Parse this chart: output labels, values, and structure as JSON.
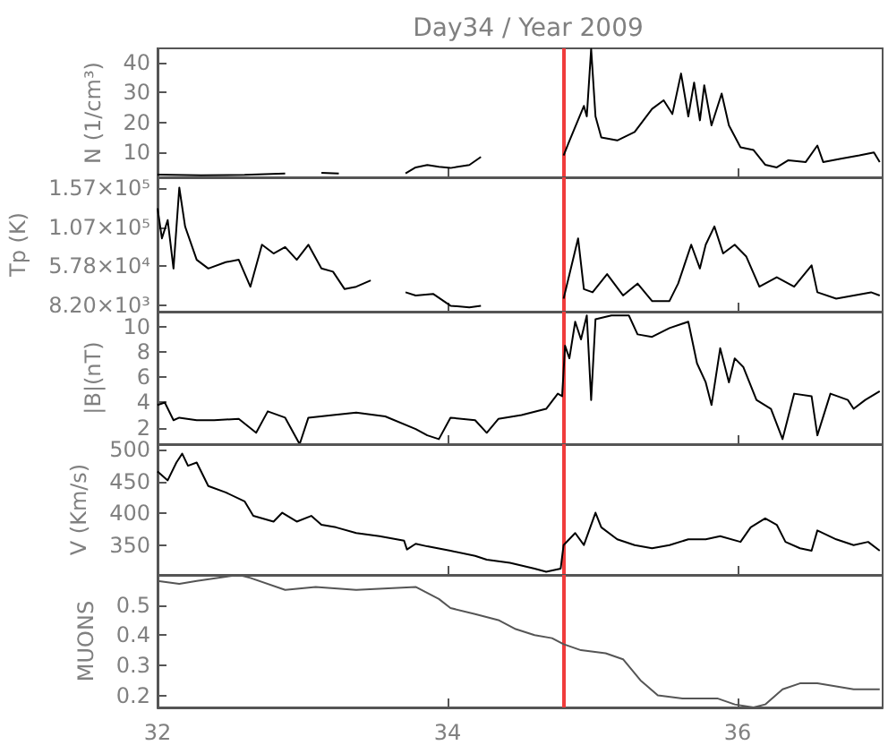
{
  "chart_data": [
    {
      "type": "line",
      "title": "Day34 / Year 2009",
      "ylabel": "N (1/cm³)",
      "color": "#000000",
      "tick_labels": "y",
      "xlim": [
        32,
        37
      ],
      "xticks": [
        32,
        34,
        36
      ],
      "ylim": [
        1.7,
        44.7
      ],
      "yticks": [
        10,
        20,
        30,
        40
      ],
      "x": [
        32.0,
        32.3,
        32.6,
        32.88,
        33.0,
        33.13,
        33.25,
        33.5,
        33.71,
        33.78,
        33.86,
        33.94,
        34.02,
        34.15,
        34.23,
        34.5,
        34.8,
        34.84,
        34.94,
        34.96,
        34.99,
        35.02,
        35.06,
        35.17,
        35.29,
        35.41,
        35.49,
        35.55,
        35.61,
        35.66,
        35.7,
        35.74,
        35.77,
        35.82,
        35.89,
        35.94,
        36.02,
        36.11,
        36.19,
        36.27,
        36.35,
        36.47,
        36.55,
        36.59,
        36.72,
        36.84,
        36.94,
        36.98
      ],
      "values": [
        2.6,
        2.4,
        2.5,
        3.0,
        null,
        3.2,
        3.0,
        null,
        3.0,
        5.0,
        5.8,
        5.2,
        4.8,
        5.8,
        8.5,
        null,
        9,
        13.8,
        25.5,
        22,
        44.5,
        22,
        15,
        14,
        16.8,
        24.5,
        27.4,
        22.8,
        36.3,
        22,
        33.3,
        20.7,
        32.4,
        19,
        29.6,
        19,
        11.7,
        10.8,
        5.9,
        5,
        7.4,
        6.8,
        12.3,
        6.8,
        8,
        9,
        10,
        6.8
      ],
      "ref_lines": [
        {
          "axis": "x",
          "value": 34.8,
          "color": "#f03c3c"
        }
      ]
    },
    {
      "type": "line",
      "ylabel": "Tp (K)",
      "color": "#000000",
      "tick_labels": "y",
      "xlim": [
        32,
        37
      ],
      "xticks": [
        32,
        34,
        36
      ],
      "ylim": [
        600,
        170000
      ],
      "yticks": [
        {
          "value": 8200,
          "label": "8.20×10³"
        },
        {
          "value": 57800,
          "label": "5.78×10⁴"
        },
        {
          "value": 107000,
          "label": "1.07×10⁵"
        },
        {
          "value": 157000,
          "label": "1.57×10⁵"
        }
      ],
      "x": [
        32.0,
        32.03,
        32.07,
        32.11,
        32.15,
        32.19,
        32.27,
        32.35,
        32.47,
        32.56,
        32.64,
        32.72,
        32.8,
        32.88,
        32.96,
        33.04,
        33.13,
        33.21,
        33.29,
        33.37,
        33.47,
        33.6,
        33.71,
        33.78,
        33.9,
        34.02,
        34.15,
        34.23,
        34.5,
        34.8,
        34.9,
        34.94,
        35.0,
        35.1,
        35.21,
        35.31,
        35.41,
        35.53,
        35.59,
        35.68,
        35.74,
        35.78,
        35.84,
        35.9,
        35.98,
        36.06,
        36.15,
        36.27,
        36.39,
        36.51,
        36.55,
        36.68,
        36.8,
        36.92,
        36.98
      ],
      "values": [
        131000,
        93000,
        116000,
        55000,
        157000,
        108000,
        66000,
        55000,
        63000,
        66000,
        32000,
        85000,
        74000,
        82000,
        66000,
        85000,
        55000,
        51000,
        29000,
        32000,
        40000,
        null,
        25000,
        21000,
        23000,
        8000,
        6000,
        8000,
        null,
        17000,
        93000,
        29000,
        25000,
        48000,
        21000,
        36000,
        14000,
        14000,
        36000,
        85000,
        55000,
        85000,
        108000,
        74000,
        85000,
        70000,
        32000,
        44000,
        32000,
        59000,
        25000,
        17000,
        21000,
        25000,
        21000
      ],
      "ref_lines": [
        {
          "axis": "x",
          "value": 34.8,
          "color": "#f03c3c"
        }
      ]
    },
    {
      "type": "line",
      "ylabel": "|B|(nT)",
      "color": "#000000",
      "tick_labels": "y",
      "xlim": [
        32,
        37
      ],
      "xticks": [
        32,
        34,
        36
      ],
      "ylim": [
        0.7,
        11.2
      ],
      "yticks": [
        2,
        4,
        6,
        8,
        10
      ],
      "x": [
        32.0,
        32.05,
        32.11,
        32.15,
        32.27,
        32.39,
        32.56,
        32.68,
        32.76,
        32.88,
        32.98,
        33.04,
        33.21,
        33.37,
        33.57,
        33.78,
        33.86,
        33.94,
        34.02,
        34.19,
        34.27,
        34.35,
        34.51,
        34.68,
        34.76,
        34.79,
        34.81,
        34.84,
        34.88,
        34.92,
        34.96,
        34.99,
        35.02,
        35.13,
        35.25,
        35.31,
        35.41,
        35.53,
        35.66,
        35.72,
        35.78,
        35.82,
        35.88,
        35.94,
        35.98,
        36.04,
        36.13,
        36.23,
        36.31,
        36.39,
        36.51,
        36.55,
        36.64,
        36.76,
        36.8,
        36.88,
        36.98
      ],
      "values": [
        3.8,
        4.0,
        2.6,
        2.8,
        2.6,
        2.6,
        2.7,
        1.6,
        3.3,
        2.8,
        0.7,
        2.8,
        3.0,
        3.2,
        2.9,
        1.9,
        1.4,
        1.1,
        2.8,
        2.6,
        1.6,
        2.7,
        3.0,
        3.5,
        4.7,
        4.5,
        8.5,
        7.5,
        10.4,
        9.0,
        10.9,
        4.2,
        10.6,
        10.9,
        10.9,
        9.4,
        9.2,
        9.9,
        10.4,
        7.1,
        5.6,
        3.8,
        8.3,
        5.6,
        7.5,
        6.8,
        4.2,
        3.5,
        1.1,
        4.7,
        4.5,
        1.4,
        4.7,
        4.2,
        3.5,
        4.2,
        4.9
      ],
      "ref_lines": [
        {
          "axis": "x",
          "value": 34.8,
          "color": "#f03c3c"
        }
      ]
    },
    {
      "type": "line",
      "ylabel": "V (Km/s)",
      "color": "#000000",
      "tick_labels": "y",
      "xlim": [
        32,
        37
      ],
      "xticks": [
        32,
        34,
        36
      ],
      "ylim": [
        303,
        509
      ],
      "yticks": [
        350,
        400,
        450,
        500
      ],
      "x": [
        32.0,
        32.07,
        32.13,
        32.17,
        32.21,
        32.27,
        32.35,
        32.47,
        32.6,
        32.66,
        32.8,
        32.86,
        32.96,
        33.06,
        33.13,
        33.23,
        33.37,
        33.53,
        33.7,
        33.72,
        33.78,
        33.86,
        34.02,
        34.19,
        34.27,
        34.43,
        34.6,
        34.68,
        34.78,
        34.8,
        34.88,
        34.94,
        35.02,
        35.06,
        35.17,
        35.29,
        35.41,
        35.53,
        35.66,
        35.78,
        35.88,
        36.02,
        36.09,
        36.19,
        36.27,
        36.33,
        36.43,
        36.51,
        36.55,
        36.68,
        36.8,
        36.9,
        36.98
      ],
      "values": [
        466,
        452,
        480,
        494,
        475,
        480,
        443,
        433,
        419,
        396,
        387,
        401,
        387,
        396,
        382,
        378,
        369,
        364,
        357,
        343,
        352,
        348,
        341,
        333,
        327,
        322,
        313,
        308,
        313,
        350,
        369,
        350,
        401,
        378,
        359,
        350,
        345,
        350,
        359,
        359,
        364,
        355,
        378,
        392,
        382,
        355,
        345,
        341,
        373,
        359,
        350,
        355,
        341
      ],
      "ref_lines": [
        {
          "axis": "x",
          "value": 34.8,
          "color": "#f03c3c"
        }
      ]
    },
    {
      "type": "line",
      "ylabel": "MUONS",
      "color": "#555555",
      "xlim": [
        32,
        37
      ],
      "xticks": [
        32,
        34,
        36
      ],
      "ylim": [
        0.16,
        0.6
      ],
      "yticks": [
        0.2,
        0.3,
        0.4,
        0.5
      ],
      "x": [
        32.0,
        32.15,
        32.27,
        32.56,
        32.64,
        32.88,
        33.09,
        33.37,
        33.78,
        33.86,
        33.94,
        34.02,
        34.19,
        34.35,
        34.47,
        34.6,
        34.72,
        34.8,
        34.92,
        35.09,
        35.21,
        35.33,
        35.45,
        35.62,
        35.74,
        35.86,
        35.98,
        36.11,
        36.19,
        36.31,
        36.43,
        36.55,
        36.68,
        36.8,
        36.98
      ],
      "values": [
        0.58,
        0.57,
        0.58,
        0.6,
        0.59,
        0.55,
        0.56,
        0.55,
        0.56,
        0.54,
        0.52,
        0.49,
        0.47,
        0.45,
        0.42,
        0.4,
        0.39,
        0.37,
        0.35,
        0.34,
        0.32,
        0.25,
        0.2,
        0.19,
        0.19,
        0.19,
        0.17,
        0.16,
        0.17,
        0.22,
        0.24,
        0.24,
        0.23,
        0.22,
        0.22
      ],
      "ref_lines": [
        {
          "axis": "x",
          "value": 34.8,
          "color": "#f03c3c"
        }
      ]
    }
  ]
}
